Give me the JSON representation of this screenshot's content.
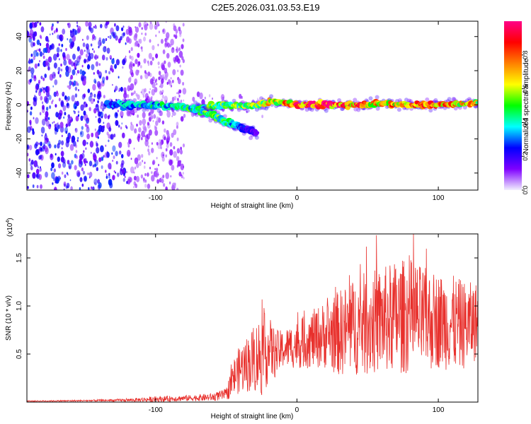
{
  "figure": {
    "title": "C2E5.2026.031.03.53.E19"
  },
  "chart_data": [
    {
      "type": "heatmap",
      "name": "spectrogram",
      "xlabel": "Height of straight line (km)",
      "ylabel": "Frequency (Hz)",
      "xlim": [
        -191,
        128
      ],
      "ylim": [
        -50,
        49
      ],
      "xticks": [
        -100,
        0,
        100
      ],
      "yticks": [
        -40,
        -20,
        0,
        20,
        40
      ],
      "grid": false,
      "description_of_data": "Scattered low-amplitude noise for heights below about -80 km; a main trace near 0 Hz across the full range becoming strongest (red, ~1.0) from about 0 km onward; a descending branch from about -60 km to -25 km dropping to about -18 Hz.",
      "main_trace": {
        "x": [
          -130,
          -110,
          -90,
          -70,
          -50,
          -30,
          -20,
          -10,
          0,
          20,
          40,
          60,
          80,
          100,
          128
        ],
        "freq": [
          0,
          0,
          -1,
          -2,
          0,
          -1,
          2,
          1,
          0,
          0,
          0,
          1,
          0,
          0,
          1
        ],
        "amplitude": [
          0.35,
          0.4,
          0.45,
          0.5,
          0.55,
          0.6,
          0.7,
          0.8,
          0.9,
          0.95,
          0.85,
          0.75,
          0.8,
          0.85,
          0.7
        ]
      },
      "branch_trace": {
        "x": [
          -70,
          -60,
          -50,
          -40,
          -32,
          -28
        ],
        "freq": [
          -3,
          -6,
          -10,
          -13,
          -15,
          -17
        ],
        "amplitude": [
          0.5,
          0.55,
          0.5,
          0.3,
          0.2,
          0.15
        ]
      }
    },
    {
      "type": "line",
      "name": "snr",
      "xlabel": "Height of straight line (km)",
      "ylabel": "SNR (10 * v/v)",
      "y_multiplier": "(x10",
      "y_multiplier_exp": "4",
      "xlim": [
        -191,
        128
      ],
      "ylim": [
        0,
        1.75
      ],
      "xticks": [
        -100,
        0,
        100
      ],
      "yticks": [
        0.5,
        1.0,
        1.5
      ],
      "ytick_labels": [
        "0.5",
        "1.0",
        "1.5"
      ],
      "color": "#e8302c",
      "envelope": {
        "x": [
          -191,
          -150,
          -120,
          -100,
          -80,
          -60,
          -50,
          -45,
          -40,
          -35,
          -30,
          -25,
          -20,
          -15,
          -10,
          0,
          10,
          20,
          30,
          40,
          50,
          60,
          70,
          80,
          90,
          100,
          110,
          120,
          128
        ],
        "y_mean": [
          0.01,
          0.015,
          0.02,
          0.03,
          0.04,
          0.05,
          0.08,
          0.25,
          0.35,
          0.4,
          0.45,
          0.5,
          0.55,
          0.5,
          0.55,
          0.6,
          0.65,
          0.7,
          0.72,
          0.78,
          0.82,
          0.85,
          0.88,
          0.9,
          0.85,
          0.85,
          0.82,
          0.8,
          0.85
        ],
        "y_amp": [
          0.005,
          0.008,
          0.015,
          0.03,
          0.03,
          0.04,
          0.06,
          0.2,
          0.25,
          0.3,
          0.35,
          0.45,
          0.35,
          0.25,
          0.2,
          0.25,
          0.3,
          0.35,
          0.45,
          0.5,
          0.55,
          0.55,
          0.6,
          0.6,
          0.55,
          0.5,
          0.5,
          0.45,
          0.4
        ]
      }
    },
    {
      "type": "colorbar",
      "name": "amplitude-colorbar",
      "label": "Normalized spectral amplitude",
      "range": [
        0,
        1
      ],
      "ticks": [
        0.0,
        0.2,
        0.4,
        0.6,
        0.8
      ],
      "tick_labels": [
        "0.0",
        "0.2",
        "0.4",
        "0.6",
        "0.8"
      ],
      "stops": [
        "#f2f0fe",
        "#7f00ff",
        "#0000ff",
        "#00ffff",
        "#00ff00",
        "#ffff00",
        "#ff8000",
        "#ff0000",
        "#ff0088"
      ]
    }
  ]
}
